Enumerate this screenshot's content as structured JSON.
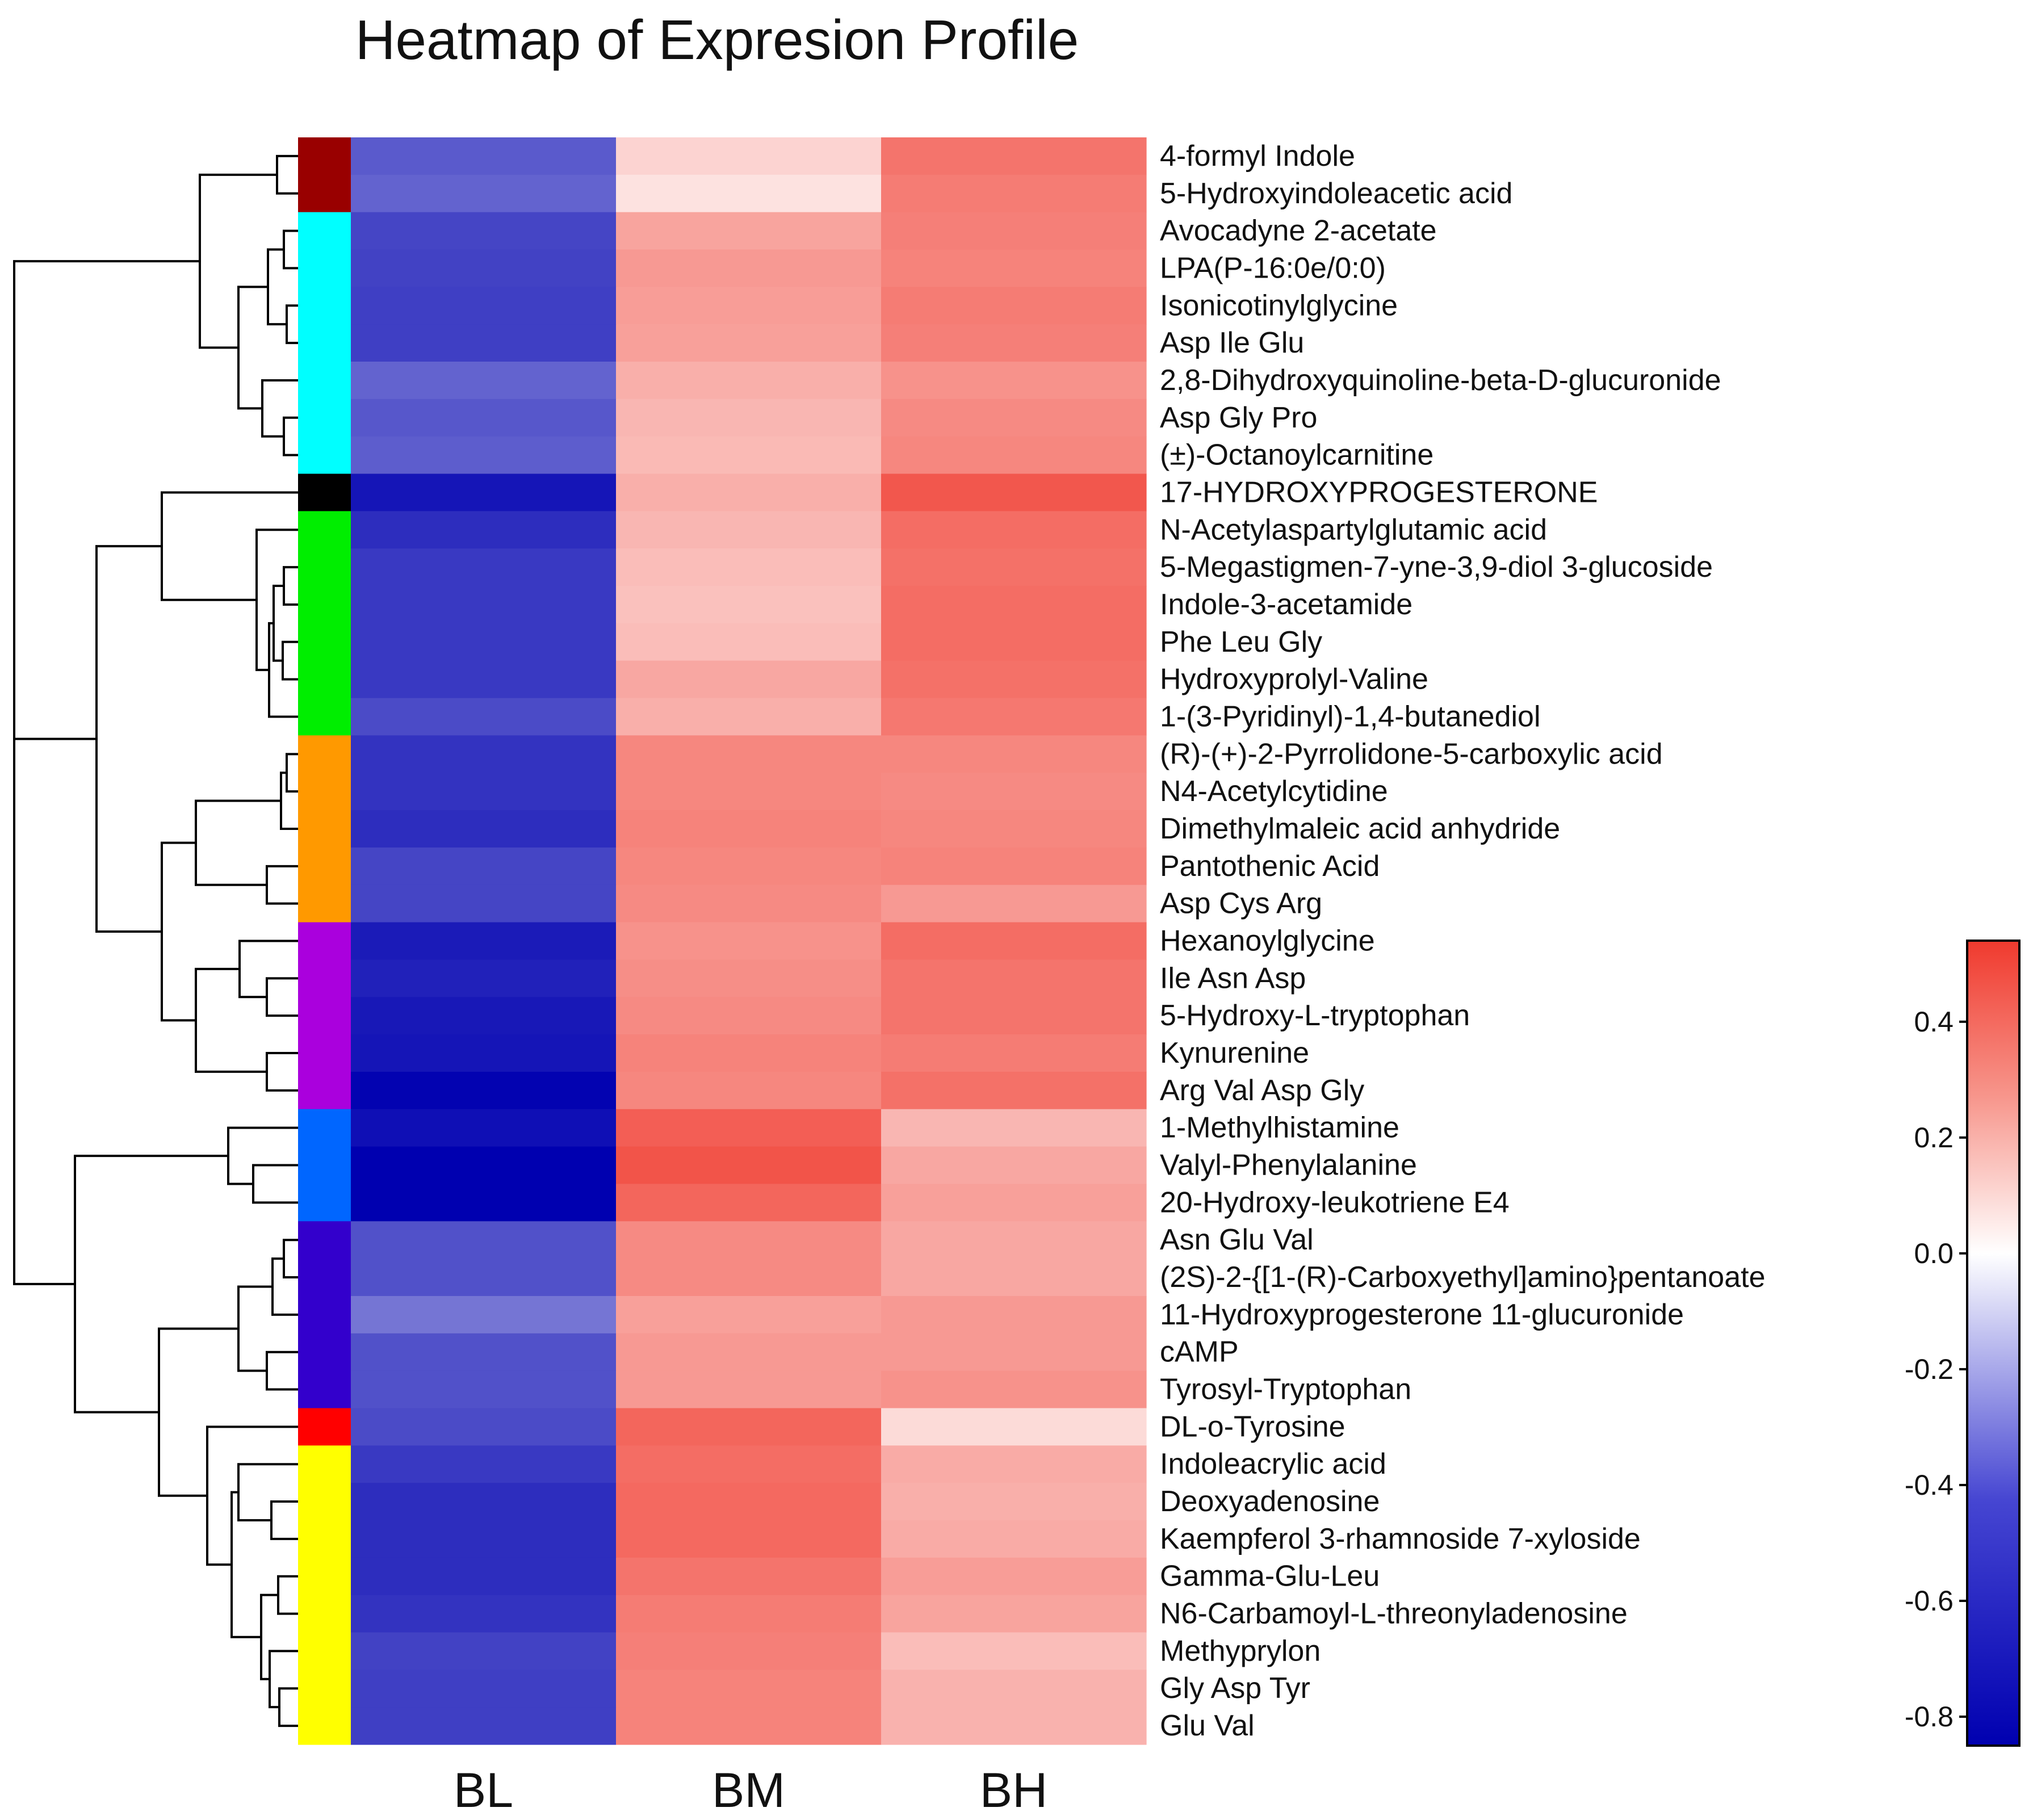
{
  "chart_data": {
    "type": "heatmap",
    "title": "Heatmap of Expresion Profile",
    "columns": [
      "BL",
      "BM",
      "BH"
    ],
    "rows": [
      "4-formyl Indole",
      "5-Hydroxyindoleacetic acid",
      "Avocadyne 2-acetate",
      "LPA(P-16:0e/0:0)",
      "Isonicotinylglycine",
      "Asp Ile Glu",
      "2,8-Dihydroxyquinoline-beta-D-glucuronide",
      "Asp Gly Pro",
      "(±)-Octanoylcarnitine",
      "17-HYDROXYPROGESTERONE",
      "N-Acetylaspartylglutamic acid",
      "5-Megastigmen-7-yne-3,9-diol 3-glucoside",
      "Indole-3-acetamide",
      "Phe Leu Gly",
      "Hydroxyprolyl-Valine",
      "1-(3-Pyridinyl)-1,4-butanediol",
      "(R)-(+)-2-Pyrrolidone-5-carboxylic acid",
      "N4-Acetylcytidine",
      "Dimethylmaleic acid anhydride",
      "Pantothenic Acid",
      "Asp Cys Arg",
      "Hexanoylglycine",
      "Ile Asn Asp",
      "5-Hydroxy-L-tryptophan",
      "Kynurenine",
      "Arg Val Asp Gly",
      "1-Methylhistamine",
      "Valyl-Phenylalanine",
      "20-Hydroxy-leukotriene E4",
      "Asn Glu Val",
      "(2S)-2-{[1-(R)-Carboxyethyl]amino}pentanoate",
      "11-Hydroxyprogesterone 11-glucuronide",
      "cAMP",
      "Tyrosyl-Tryptophan",
      "DL-o-Tyrosine",
      "Indoleacrylic acid",
      "Deoxyadenosine",
      "Kaempferol 3-rhamnoside 7-xyloside",
      "Gamma-Glu-Leu",
      "N6-Carbamoyl-L-threonyladenosine",
      "Methyprylon",
      "Gly Asp Tyr",
      "Glu Val"
    ],
    "values": [
      [
        -0.55,
        0.12,
        0.38
      ],
      [
        -0.52,
        0.08,
        0.36
      ],
      [
        -0.62,
        0.25,
        0.35
      ],
      [
        -0.63,
        0.28,
        0.34
      ],
      [
        -0.64,
        0.27,
        0.36
      ],
      [
        -0.64,
        0.26,
        0.35
      ],
      [
        -0.52,
        0.22,
        0.3
      ],
      [
        -0.56,
        0.2,
        0.32
      ],
      [
        -0.54,
        0.19,
        0.33
      ],
      [
        -0.78,
        0.22,
        0.46
      ],
      [
        -0.7,
        0.2,
        0.4
      ],
      [
        -0.66,
        0.18,
        0.39
      ],
      [
        -0.66,
        0.17,
        0.4
      ],
      [
        -0.66,
        0.18,
        0.4
      ],
      [
        -0.66,
        0.24,
        0.39
      ],
      [
        -0.6,
        0.22,
        0.37
      ],
      [
        -0.68,
        0.33,
        0.33
      ],
      [
        -0.68,
        0.33,
        0.32
      ],
      [
        -0.7,
        0.34,
        0.33
      ],
      [
        -0.62,
        0.33,
        0.34
      ],
      [
        -0.62,
        0.32,
        0.28
      ],
      [
        -0.76,
        0.3,
        0.4
      ],
      [
        -0.74,
        0.31,
        0.38
      ],
      [
        -0.77,
        0.32,
        0.38
      ],
      [
        -0.78,
        0.34,
        0.36
      ],
      [
        -0.84,
        0.33,
        0.39
      ],
      [
        -0.8,
        0.44,
        0.2
      ],
      [
        -0.98,
        0.47,
        0.24
      ],
      [
        -0.88,
        0.42,
        0.26
      ],
      [
        -0.58,
        0.32,
        0.24
      ],
      [
        -0.58,
        0.32,
        0.24
      ],
      [
        -0.46,
        0.26,
        0.28
      ],
      [
        -0.58,
        0.28,
        0.28
      ],
      [
        -0.58,
        0.28,
        0.3
      ],
      [
        -0.6,
        0.42,
        0.1
      ],
      [
        -0.66,
        0.4,
        0.23
      ],
      [
        -0.7,
        0.41,
        0.22
      ],
      [
        -0.7,
        0.41,
        0.23
      ],
      [
        -0.7,
        0.38,
        0.27
      ],
      [
        -0.68,
        0.36,
        0.25
      ],
      [
        -0.63,
        0.35,
        0.18
      ],
      [
        -0.64,
        0.34,
        0.21
      ],
      [
        -0.64,
        0.34,
        0.21
      ]
    ],
    "row_clusters": [
      {
        "color": "#990000",
        "count": 2
      },
      {
        "color": "#00ffff",
        "count": 7
      },
      {
        "color": "#000000",
        "count": 1
      },
      {
        "color": "#00ee00",
        "count": 6
      },
      {
        "color": "#ff9900",
        "count": 5
      },
      {
        "color": "#aa00dd",
        "count": 5
      },
      {
        "color": "#0066ff",
        "count": 3
      },
      {
        "color": "#3300cc",
        "count": 5
      },
      {
        "color": "#ff0000",
        "count": 1
      },
      {
        "color": "#ffff00",
        "count": 8
      }
    ],
    "colorbar": {
      "range": [
        -0.85,
        0.54
      ],
      "ticks": [
        "0.4",
        "0.2",
        "0.0",
        "-0.2",
        "-0.4",
        "-0.6",
        "-0.8"
      ],
      "tick_values": [
        0.4,
        0.2,
        0.0,
        -0.2,
        -0.4,
        -0.6,
        -0.8
      ],
      "low_color": "#0000b0",
      "mid_color": "#ffffff",
      "high_color": "#f03a2e",
      "placement": "right"
    },
    "dendrogram": "row-clustered (left side)"
  }
}
